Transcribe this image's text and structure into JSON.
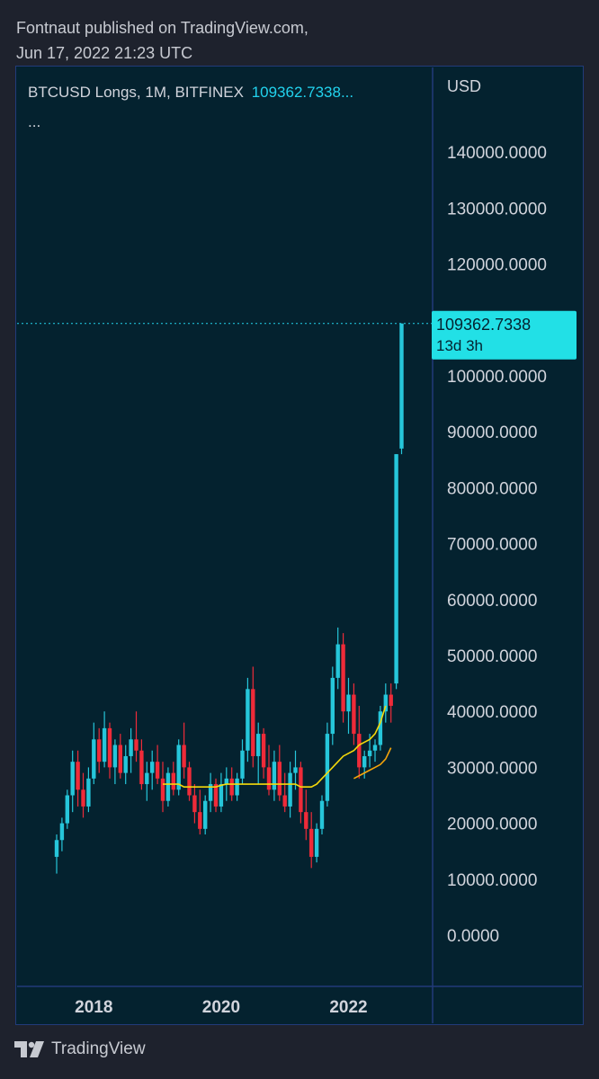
{
  "header": {
    "line1": "Fontnaut published on TradingView.com,",
    "line2": "Jun 17, 2022 21:23 UTC"
  },
  "legend": {
    "title": "BTCUSD Longs, 1M, BITFINEX",
    "value": "109362.7338...",
    "more": "..."
  },
  "price_tag": {
    "value": "109362.7338",
    "countdown": "13d 3h"
  },
  "footer": {
    "brand": "TradingView"
  },
  "colors": {
    "background": "#04222f",
    "up": "#26c6da",
    "down": "#ef2b39",
    "ma_fast": "#f5d90a",
    "ma_slow": "#f5a40a",
    "tag_bg": "#22e0e6"
  },
  "chart_data": {
    "type": "candlestick",
    "title": "BTCUSD Longs, 1M, BITFINEX",
    "ylabel": "USD",
    "ylim": [
      0,
      145000
    ],
    "yticks": [
      "140000.0000",
      "130000.0000",
      "120000.0000",
      "110000.0000",
      "100000.0000",
      "90000.0000",
      "80000.0000",
      "70000.0000",
      "60000.0000",
      "50000.0000",
      "40000.0000",
      "30000.0000",
      "20000.0000",
      "10000.0000",
      "0.0000"
    ],
    "xticks": [
      {
        "label": "2018",
        "index": 7
      },
      {
        "label": "2020",
        "index": 31
      },
      {
        "label": "2022",
        "index": 55
      }
    ],
    "last_value": 109362.7338,
    "candles": [
      [
        14000,
        18000,
        11000,
        17000
      ],
      [
        17000,
        21000,
        15000,
        20000
      ],
      [
        20000,
        26000,
        19000,
        25000
      ],
      [
        25000,
        33000,
        22000,
        31000
      ],
      [
        31000,
        33000,
        23000,
        26000
      ],
      [
        26000,
        29000,
        21000,
        23000
      ],
      [
        23000,
        30000,
        22000,
        28000
      ],
      [
        28000,
        38000,
        27000,
        35000
      ],
      [
        35000,
        37000,
        29000,
        31000
      ],
      [
        31000,
        40000,
        30000,
        37000
      ],
      [
        37000,
        38000,
        28000,
        30000
      ],
      [
        30000,
        35000,
        27000,
        34000
      ],
      [
        34000,
        36000,
        28000,
        29000
      ],
      [
        29000,
        34000,
        27000,
        32000
      ],
      [
        32000,
        37000,
        29000,
        35000
      ],
      [
        35000,
        40000,
        31000,
        33000
      ],
      [
        33000,
        35000,
        26000,
        27000
      ],
      [
        27000,
        31000,
        24000,
        29000
      ],
      [
        29000,
        33000,
        26000,
        31000
      ],
      [
        31000,
        34000,
        27000,
        28000
      ],
      [
        28000,
        31000,
        22000,
        24000
      ],
      [
        24000,
        30000,
        23000,
        29000
      ],
      [
        29000,
        31000,
        25000,
        26000
      ],
      [
        26000,
        35000,
        25000,
        34000
      ],
      [
        34000,
        38000,
        28000,
        30000
      ],
      [
        30000,
        31000,
        24000,
        25000
      ],
      [
        25000,
        27000,
        20000,
        22000
      ],
      [
        22000,
        26000,
        18000,
        19000
      ],
      [
        19000,
        25000,
        18000,
        24000
      ],
      [
        24000,
        29000,
        22000,
        27000
      ],
      [
        27000,
        28000,
        22000,
        23000
      ],
      [
        23000,
        29000,
        22000,
        27000
      ],
      [
        27000,
        30000,
        24000,
        28000
      ],
      [
        28000,
        30000,
        24000,
        25000
      ],
      [
        25000,
        29000,
        24000,
        28000
      ],
      [
        28000,
        35000,
        27000,
        33000
      ],
      [
        33000,
        46000,
        31000,
        44000
      ],
      [
        44000,
        48000,
        30000,
        32000
      ],
      [
        32000,
        38000,
        27000,
        36000
      ],
      [
        36000,
        37000,
        28000,
        30000
      ],
      [
        30000,
        34000,
        25000,
        26000
      ],
      [
        26000,
        33000,
        24000,
        31000
      ],
      [
        31000,
        34000,
        24000,
        25000
      ],
      [
        25000,
        29000,
        22000,
        23000
      ],
      [
        23000,
        31000,
        21000,
        29000
      ],
      [
        29000,
        33000,
        26000,
        30000
      ],
      [
        30000,
        31000,
        20000,
        22000
      ],
      [
        22000,
        26000,
        17000,
        19000
      ],
      [
        19000,
        22000,
        12000,
        14000
      ],
      [
        14000,
        20000,
        13000,
        19000
      ],
      [
        19000,
        25000,
        18000,
        24000
      ],
      [
        24000,
        38000,
        23000,
        36000
      ],
      [
        36000,
        48000,
        34000,
        46000
      ],
      [
        46000,
        55000,
        44000,
        52000
      ],
      [
        52000,
        54000,
        38000,
        40000
      ],
      [
        40000,
        46000,
        36000,
        43000
      ],
      [
        43000,
        45000,
        34000,
        36000
      ],
      [
        36000,
        41000,
        28000,
        30000
      ],
      [
        30000,
        33000,
        28000,
        32000
      ],
      [
        32000,
        36000,
        30000,
        33000
      ],
      [
        33000,
        35000,
        31000,
        34000
      ],
      [
        34000,
        41000,
        33000,
        40000
      ],
      [
        40000,
        45000,
        38000,
        43000
      ],
      [
        43000,
        45000,
        38000,
        41000
      ],
      [
        45000,
        86000,
        44000,
        86000
      ],
      [
        87000,
        109363,
        86000,
        109363
      ]
    ],
    "ma_fast": [
      null,
      null,
      null,
      null,
      null,
      null,
      null,
      null,
      null,
      null,
      null,
      null,
      null,
      null,
      null,
      null,
      null,
      null,
      null,
      null,
      27000,
      27000,
      27000,
      27000,
      26500,
      26500,
      26500,
      26500,
      26500,
      26500,
      26500,
      26800,
      27000,
      27000,
      27000,
      27000,
      27000,
      27000,
      27000,
      27000,
      27000,
      27000,
      27000,
      27000,
      27000,
      27000,
      26500,
      26500,
      26500,
      27000,
      28000,
      29000,
      30000,
      31000,
      32000,
      32500,
      33000,
      34000,
      34500,
      35000,
      36000,
      38000,
      41000,
      null,
      null
    ],
    "ma_slow": [
      null,
      null,
      null,
      null,
      null,
      null,
      null,
      null,
      null,
      null,
      null,
      null,
      null,
      null,
      null,
      null,
      null,
      null,
      null,
      null,
      null,
      null,
      null,
      null,
      null,
      null,
      null,
      null,
      null,
      null,
      null,
      null,
      null,
      null,
      null,
      null,
      null,
      null,
      null,
      null,
      null,
      null,
      null,
      null,
      null,
      null,
      null,
      null,
      null,
      null,
      null,
      null,
      null,
      null,
      null,
      null,
      28000,
      28500,
      29000,
      29500,
      30000,
      30500,
      31500,
      33500,
      null,
      null
    ]
  }
}
